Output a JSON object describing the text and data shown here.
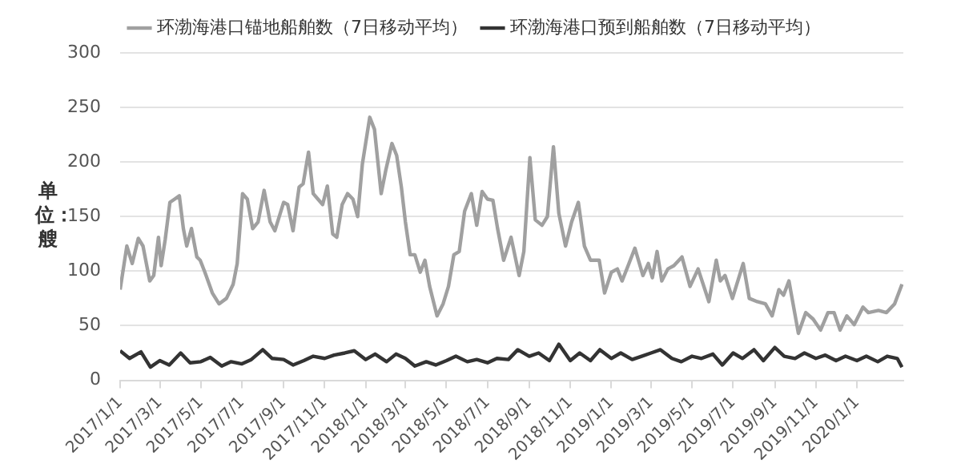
{
  "chart_data": {
    "type": "line",
    "ylabel": "单位：艘",
    "legend": "top",
    "grid": "y",
    "marker": "none",
    "line_style": "solid",
    "xlim": [
      "2017-01-01",
      "2020-03-10"
    ],
    "ylim": [
      0,
      300
    ],
    "yticks": [
      0,
      50,
      100,
      150,
      200,
      250,
      300
    ],
    "xticks": [
      {
        "value": "2017-01-01",
        "label": "2017/1/1"
      },
      {
        "value": "2017-03-01",
        "label": "2017/3/1"
      },
      {
        "value": "2017-05-01",
        "label": "2017/5/1"
      },
      {
        "value": "2017-07-01",
        "label": "2017/7/1"
      },
      {
        "value": "2017-09-01",
        "label": "2017/9/1"
      },
      {
        "value": "2017-11-01",
        "label": "2017/11/1"
      },
      {
        "value": "2018-01-01",
        "label": "2018/1/1"
      },
      {
        "value": "2018-03-01",
        "label": "2018/3/1"
      },
      {
        "value": "2018-05-01",
        "label": "2018/5/1"
      },
      {
        "value": "2018-07-01",
        "label": "2018/7/1"
      },
      {
        "value": "2018-09-01",
        "label": "2018/9/1"
      },
      {
        "value": "2018-11-01",
        "label": "2018/11/1"
      },
      {
        "value": "2019-01-01",
        "label": "2019/1/1"
      },
      {
        "value": "2019-03-01",
        "label": "2019/3/1"
      },
      {
        "value": "2019-05-01",
        "label": "2019/5/1"
      },
      {
        "value": "2019-07-01",
        "label": "2019/7/1"
      },
      {
        "value": "2019-09-01",
        "label": "2019/9/1"
      },
      {
        "value": "2019-11-01",
        "label": "2019/11/1"
      },
      {
        "value": "2020-01-01",
        "label": "2020/1/1"
      }
    ],
    "series": [
      {
        "name": "环渤海港口锚地船舶数（7日移动平均）",
        "color": "#a0a0a0",
        "x": [
          "2017-01-01",
          "2017-01-11",
          "2017-01-19",
          "2017-01-28",
          "2017-02-04",
          "2017-02-14",
          "2017-02-20",
          "2017-02-27",
          "2017-03-03",
          "2017-03-09",
          "2017-03-16",
          "2017-03-23",
          "2017-03-30",
          "2017-04-05",
          "2017-04-10",
          "2017-04-17",
          "2017-04-25",
          "2017-04-30",
          "2017-05-07",
          "2017-05-18",
          "2017-05-28",
          "2017-06-08",
          "2017-06-18",
          "2017-06-24",
          "2017-07-02",
          "2017-07-09",
          "2017-07-17",
          "2017-07-25",
          "2017-08-03",
          "2017-08-12",
          "2017-08-19",
          "2017-09-01",
          "2017-09-07",
          "2017-09-15",
          "2017-09-24",
          "2017-09-30",
          "2017-10-08",
          "2017-10-15",
          "2017-10-22",
          "2017-10-29",
          "2017-11-05",
          "2017-11-13",
          "2017-11-19",
          "2017-11-27",
          "2017-12-05",
          "2017-12-13",
          "2017-12-20",
          "2017-12-27",
          "2018-01-07",
          "2018-01-14",
          "2018-01-24",
          "2018-01-31",
          "2018-02-09",
          "2018-02-16",
          "2018-02-23",
          "2018-03-01",
          "2018-03-08",
          "2018-03-15",
          "2018-03-23",
          "2018-03-30",
          "2018-04-06",
          "2018-04-17",
          "2018-04-26",
          "2018-05-04",
          "2018-05-12",
          "2018-05-20",
          "2018-05-28",
          "2018-06-07",
          "2018-06-15",
          "2018-06-23",
          "2018-07-01",
          "2018-07-09",
          "2018-07-16",
          "2018-07-25",
          "2018-08-05",
          "2018-08-17",
          "2018-08-24",
          "2018-09-02",
          "2018-09-10",
          "2018-09-20",
          "2018-09-28",
          "2018-10-07",
          "2018-10-15",
          "2018-10-25",
          "2018-11-03",
          "2018-11-13",
          "2018-11-22",
          "2018-12-01",
          "2018-12-14",
          "2018-12-22",
          "2019-01-01",
          "2019-01-10",
          "2019-01-17",
          "2019-01-26",
          "2019-02-05",
          "2019-02-17",
          "2019-02-25",
          "2019-03-03",
          "2019-03-10",
          "2019-03-17",
          "2019-03-26",
          "2019-04-04",
          "2019-04-16",
          "2019-04-28",
          "2019-05-10",
          "2019-05-26",
          "2019-06-06",
          "2019-06-12",
          "2019-06-19",
          "2019-06-30",
          "2019-07-16",
          "2019-07-25",
          "2019-08-06",
          "2019-08-18",
          "2019-08-28",
          "2019-09-07",
          "2019-09-14",
          "2019-09-22",
          "2019-10-06",
          "2019-10-17",
          "2019-10-28",
          "2019-11-08",
          "2019-11-19",
          "2019-11-28",
          "2019-12-07",
          "2019-12-17",
          "2019-12-28",
          "2020-01-10",
          "2020-01-18",
          "2020-02-02",
          "2020-02-14",
          "2020-02-26",
          "2020-03-08"
        ],
        "values": [
          83,
          123,
          107,
          130,
          123,
          91,
          96,
          131,
          105,
          129,
          163,
          166,
          169,
          139,
          123,
          139,
          113,
          110,
          99,
          80,
          70,
          75,
          88,
          107,
          171,
          166,
          139,
          145,
          174,
          145,
          137,
          163,
          161,
          137,
          177,
          180,
          209,
          171,
          166,
          161,
          178,
          134,
          131,
          161,
          171,
          166,
          150,
          198,
          241,
          230,
          171,
          193,
          217,
          206,
          177,
          145,
          115,
          115,
          99,
          110,
          86,
          59,
          70,
          86,
          115,
          118,
          155,
          171,
          142,
          173,
          166,
          165,
          139,
          110,
          131,
          96,
          118,
          204,
          147,
          142,
          150,
          214,
          153,
          123,
          145,
          163,
          123,
          110,
          110,
          80,
          99,
          102,
          91,
          105,
          121,
          96,
          107,
          94,
          118,
          91,
          102,
          105,
          113,
          86,
          102,
          72,
          110,
          91,
          96,
          75,
          107,
          75,
          72,
          70,
          59,
          83,
          78,
          91,
          43,
          62,
          56,
          46,
          62,
          62,
          46,
          59,
          51,
          67,
          62,
          64,
          62,
          70,
          88
        ]
      },
      {
        "name": "环渤海港口预到船舶数（7日移动平均）",
        "color": "#333333",
        "x": [
          "2017-01-01",
          "2017-01-15",
          "2017-02-01",
          "2017-02-15",
          "2017-03-01",
          "2017-03-15",
          "2017-04-01",
          "2017-04-15",
          "2017-05-01",
          "2017-05-15",
          "2017-06-01",
          "2017-06-15",
          "2017-07-01",
          "2017-07-15",
          "2017-08-01",
          "2017-08-15",
          "2017-09-01",
          "2017-09-15",
          "2017-10-01",
          "2017-10-15",
          "2017-11-01",
          "2017-11-15",
          "2017-12-01",
          "2017-12-15",
          "2018-01-01",
          "2018-01-15",
          "2018-02-01",
          "2018-02-15",
          "2018-03-01",
          "2018-03-15",
          "2018-04-01",
          "2018-04-15",
          "2018-05-01",
          "2018-05-15",
          "2018-06-01",
          "2018-06-15",
          "2018-07-01",
          "2018-07-15",
          "2018-08-01",
          "2018-08-15",
          "2018-09-01",
          "2018-09-15",
          "2018-10-01",
          "2018-10-15",
          "2018-11-01",
          "2018-11-15",
          "2018-12-01",
          "2018-12-15",
          "2019-01-01",
          "2019-01-15",
          "2019-02-01",
          "2019-02-15",
          "2019-03-01",
          "2019-03-15",
          "2019-04-01",
          "2019-04-15",
          "2019-05-01",
          "2019-05-15",
          "2019-06-01",
          "2019-06-15",
          "2019-07-01",
          "2019-07-15",
          "2019-08-01",
          "2019-08-15",
          "2019-09-01",
          "2019-09-15",
          "2019-10-01",
          "2019-10-15",
          "2019-11-01",
          "2019-11-15",
          "2019-12-01",
          "2019-12-15",
          "2020-01-01",
          "2020-01-15",
          "2020-02-01",
          "2020-02-15",
          "2020-03-01",
          "2020-03-08"
        ],
        "values": [
          27,
          20,
          26,
          12,
          18,
          14,
          25,
          16,
          17,
          21,
          13,
          17,
          15,
          19,
          28,
          20,
          19,
          14,
          18,
          22,
          20,
          23,
          25,
          27,
          19,
          24,
          17,
          24,
          20,
          13,
          17,
          14,
          18,
          22,
          17,
          19,
          16,
          20,
          19,
          28,
          22,
          25,
          18,
          33,
          18,
          25,
          18,
          28,
          20,
          25,
          19,
          22,
          25,
          28,
          20,
          17,
          22,
          20,
          24,
          14,
          25,
          20,
          28,
          18,
          30,
          22,
          20,
          25,
          20,
          23,
          18,
          22,
          18,
          22,
          17,
          22,
          20,
          12
        ]
      }
    ]
  }
}
